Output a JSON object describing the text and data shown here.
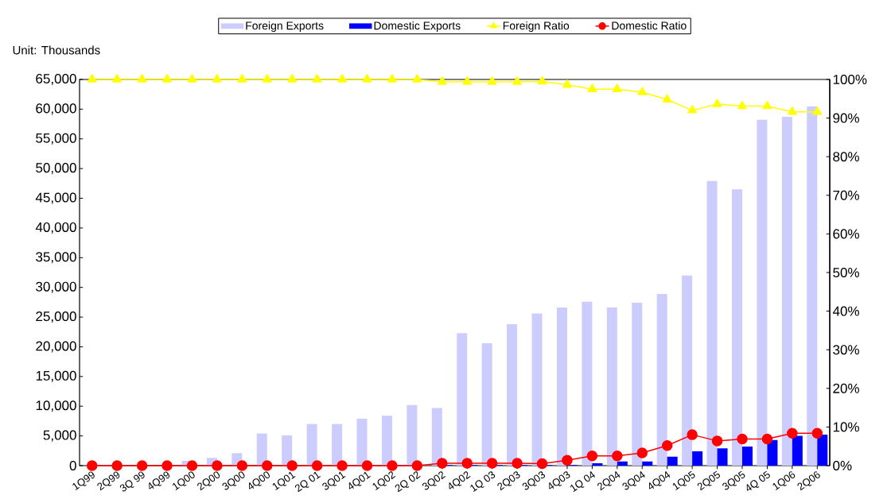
{
  "chart_data": {
    "type": "bar",
    "categories": [
      "1Q99",
      "2Q99",
      "3Q 99",
      "4Q99",
      "1Q00",
      "2Q00",
      "3Q00",
      "4Q00",
      "1Q01",
      "2Q 01",
      "3Q01",
      "4Q01",
      "1Q02",
      "2Q 02",
      "3Q02",
      "4Q02",
      "1Q 03",
      "2Q03",
      "3Q03",
      "4Q03",
      "1Q 04",
      "2Q04",
      "3Q04",
      "4Q04",
      "1Q05",
      "2Q05",
      "3Q05",
      "4Q 05",
      "1Q06",
      "2Q06"
    ],
    "series": [
      {
        "name": "Foreign Exports",
        "color": "#ccccff",
        "values": [
          null,
          null,
          null,
          null,
          800,
          1300,
          2100,
          5400,
          5100,
          7000,
          7000,
          7900,
          8400,
          10200,
          9700,
          22300,
          20600,
          23800,
          25600,
          26600,
          27600,
          26600,
          27400,
          28900,
          32000,
          47900,
          46500,
          58200,
          58700,
          60500
        ]
      },
      {
        "name": "Domestic Exports",
        "color": "#0000ff",
        "values": [
          0,
          0,
          0,
          0,
          0,
          0,
          0,
          0,
          0,
          0,
          0,
          0,
          0,
          0,
          100,
          100,
          100,
          100,
          100,
          100,
          400,
          700,
          700,
          1500,
          2400,
          2900,
          3200,
          4300,
          5000,
          5200
        ]
      },
      {
        "name": "Foreign Ratio",
        "type": "line",
        "axis": "y2",
        "marker": "triangle",
        "color": "#ffff00",
        "values": [
          100,
          100,
          100,
          100,
          100,
          100,
          100,
          100,
          100,
          100,
          100,
          100,
          100,
          100,
          99.4,
          99.4,
          99.4,
          99.4,
          99.5,
          98.6,
          97.5,
          97.5,
          96.7,
          94.8,
          92.0,
          93.6,
          93.1,
          93.1,
          91.6,
          91.6
        ]
      },
      {
        "name": "Domestic Ratio",
        "type": "line",
        "axis": "y2",
        "marker": "circle",
        "color": "#ff0000",
        "values": [
          0,
          0,
          0,
          0,
          0,
          0,
          0,
          0,
          0,
          0,
          0,
          0,
          0,
          0,
          0.6,
          0.6,
          0.6,
          0.6,
          0.5,
          1.4,
          2.5,
          2.5,
          3.3,
          5.2,
          8.0,
          6.4,
          6.9,
          6.9,
          8.4,
          8.4
        ]
      }
    ],
    "ylim": [
      0,
      65000
    ],
    "yticks": [
      {
        "value": 0,
        "label": "0"
      },
      {
        "value": 5000,
        "label": "5,000"
      },
      {
        "value": 10000,
        "label": "10,000"
      },
      {
        "value": 15000,
        "label": "15,000"
      },
      {
        "value": 20000,
        "label": "20,000"
      },
      {
        "value": 25000,
        "label": "25,000"
      },
      {
        "value": 30000,
        "label": "30,000"
      },
      {
        "value": 35000,
        "label": "35,000"
      },
      {
        "value": 40000,
        "label": "40,000"
      },
      {
        "value": 45000,
        "label": "45,000"
      },
      {
        "value": 50000,
        "label": "50,000"
      },
      {
        "value": 55000,
        "label": "55,000"
      },
      {
        "value": 60000,
        "label": "60,000"
      },
      {
        "value": 65000,
        "label": "65,000"
      }
    ],
    "y2lim": [
      0,
      100
    ],
    "y2ticks": [
      {
        "value": 0,
        "label": "0%"
      },
      {
        "value": 10,
        "label": "10%"
      },
      {
        "value": 20,
        "label": "20%"
      },
      {
        "value": 30,
        "label": "30%"
      },
      {
        "value": 40,
        "label": "40%"
      },
      {
        "value": 50,
        "label": "50%"
      },
      {
        "value": 60,
        "label": "60%"
      },
      {
        "value": 70,
        "label": "70%"
      },
      {
        "value": 80,
        "label": "80%"
      },
      {
        "value": 90,
        "label": "90%"
      },
      {
        "value": 100,
        "label": "100%"
      }
    ],
    "legend": "top",
    "annotations": [
      "Unit: Thousands"
    ]
  }
}
